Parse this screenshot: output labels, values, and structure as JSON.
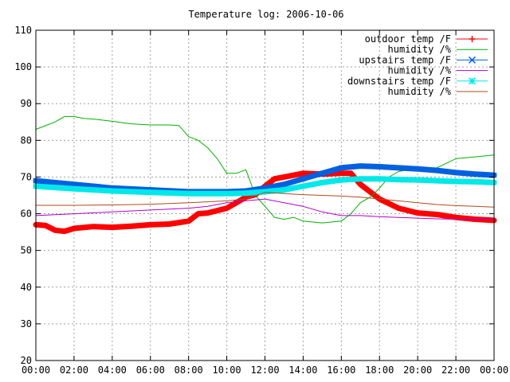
{
  "chart_data": {
    "type": "line",
    "title": "Temperature log: 2006-10-06",
    "xlabel": "",
    "ylabel": "",
    "grid": true,
    "legend_position": "top-right",
    "xlim": [
      0,
      24
    ],
    "ylim": [
      20,
      110
    ],
    "x_ticks": [
      "00:00",
      "02:00",
      "04:00",
      "06:00",
      "08:00",
      "10:00",
      "12:00",
      "14:00",
      "16:00",
      "18:00",
      "20:00",
      "22:00",
      "00:00"
    ],
    "y_ticks": [
      20,
      30,
      40,
      50,
      60,
      70,
      80,
      90,
      100,
      110
    ],
    "series": [
      {
        "name": "outdoor temp /F",
        "color": "#ff0000",
        "marker": "plus",
        "style": "thick",
        "x": [
          0,
          0.5,
          1,
          1.5,
          2,
          3,
          4,
          5,
          6,
          7,
          8,
          8.5,
          9,
          10,
          11,
          11.5,
          12,
          12.5,
          13,
          14,
          15,
          16,
          16.5,
          17,
          18,
          19,
          20,
          21,
          22,
          23,
          24
        ],
        "y": [
          57,
          56.8,
          55.5,
          55.2,
          56,
          56.5,
          56.3,
          56.6,
          57,
          57.2,
          58,
          60,
          60.2,
          61.5,
          64.5,
          65.2,
          67.5,
          69.5,
          70,
          71,
          70.8,
          71,
          71,
          68,
          64,
          61.5,
          60.2,
          59.8,
          59,
          58.5,
          58.2
        ]
      },
      {
        "name": "humidity /%",
        "color": "#00b000",
        "marker": "none",
        "style": "thin",
        "x": [
          0,
          0.5,
          1,
          1.5,
          2,
          2.5,
          3,
          4,
          5,
          6,
          7,
          7.5,
          8,
          8.5,
          9,
          9.5,
          10,
          10.5,
          11,
          11.5,
          12,
          12.5,
          13,
          13.5,
          14,
          15,
          16,
          16.5,
          17,
          17.5,
          18,
          18.5,
          19,
          20,
          21,
          22,
          23,
          24
        ],
        "y": [
          83,
          84,
          85,
          86.5,
          86.5,
          86,
          85.8,
          85.2,
          84.5,
          84.2,
          84.2,
          84,
          81,
          80,
          78,
          75,
          71,
          71,
          72,
          65,
          62,
          59,
          58.5,
          59,
          58,
          57.5,
          58,
          60,
          63,
          64.5,
          67,
          70,
          71.5,
          72.5,
          72.5,
          75,
          75.5,
          76
        ]
      },
      {
        "name": "upstairs temp /F",
        "color": "#0060e0",
        "marker": "cross",
        "style": "thick",
        "x": [
          0,
          2,
          4,
          6,
          8,
          10,
          11,
          12,
          13,
          14,
          15,
          16,
          17,
          18,
          19,
          20,
          21,
          22,
          23,
          24
        ],
        "y": [
          69,
          68,
          67,
          66.5,
          66,
          66,
          66.2,
          67,
          68,
          69.5,
          71,
          72.5,
          73,
          72.8,
          72.5,
          72.2,
          71.8,
          71.2,
          70.8,
          70.5
        ]
      },
      {
        "name": "humidity /%",
        "color": "#b000c8",
        "marker": "none",
        "style": "thin",
        "x": [
          0,
          2,
          4,
          6,
          8,
          9,
          10,
          11,
          12,
          13,
          14,
          15,
          16,
          17,
          18,
          19,
          20,
          21,
          22,
          23,
          24
        ],
        "y": [
          59.5,
          60,
          60.5,
          61,
          61.5,
          62,
          63,
          63.5,
          64,
          63,
          62,
          60.5,
          59.5,
          59.5,
          59.2,
          59,
          58.8,
          58.6,
          58.5,
          58.5,
          58.5
        ]
      },
      {
        "name": "downstairs temp /F",
        "color": "#00e8e8",
        "marker": "star",
        "style": "thick",
        "x": [
          0,
          2,
          4,
          6,
          8,
          10,
          11,
          12,
          13,
          14,
          15,
          16,
          17,
          18,
          19,
          20,
          21,
          22,
          23,
          24
        ],
        "y": [
          67.5,
          66.8,
          66.2,
          65.8,
          65.5,
          65.5,
          65.6,
          66,
          66.5,
          67.5,
          68.5,
          69.2,
          69.5,
          69.5,
          69.3,
          69.2,
          69,
          68.8,
          68.7,
          68.5
        ]
      },
      {
        "name": "humidity /%",
        "color": "#b04a1a",
        "marker": "none",
        "style": "thin",
        "x": [
          0,
          2,
          4,
          6,
          8,
          10,
          11,
          12,
          13,
          14,
          15,
          16,
          17,
          18,
          19,
          20,
          21,
          22,
          23,
          24
        ],
        "y": [
          62.3,
          62.3,
          62.4,
          62.6,
          63,
          63.5,
          64,
          65.8,
          65.5,
          65.2,
          65,
          64.8,
          64.5,
          64,
          63.5,
          63,
          62.5,
          62.2,
          62,
          61.8
        ]
      }
    ]
  }
}
